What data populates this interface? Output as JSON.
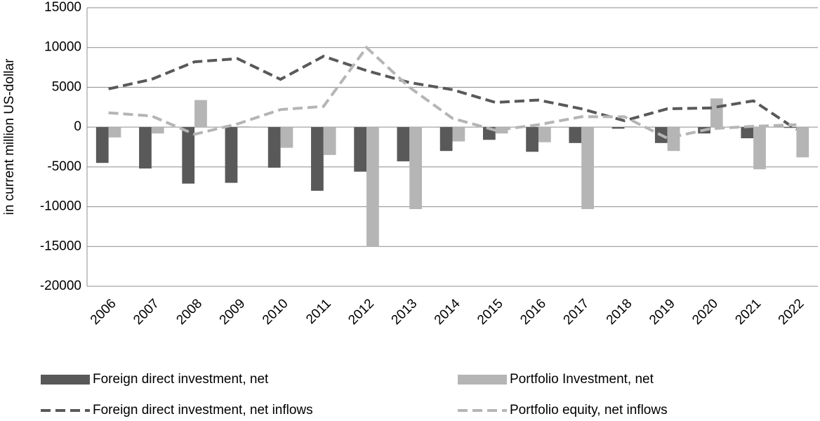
{
  "chart_data": {
    "type": "bar_line",
    "y_label": "in current million US-dollar",
    "categories": [
      "2006",
      "2007",
      "2008",
      "2009",
      "2010",
      "2011",
      "2012",
      "2013",
      "2014",
      "2015",
      "2016",
      "2017",
      "2018",
      "2019",
      "2020",
      "2021",
      "2022"
    ],
    "ylim": [
      -20000,
      15000
    ],
    "yticks": [
      -20000,
      -15000,
      -10000,
      -5000,
      0,
      5000,
      10000,
      15000
    ],
    "grid": true,
    "legend": "bottom",
    "series": [
      {
        "name": "Foreign direct investment, net",
        "kind": "bar",
        "color": "#595959",
        "values": [
          -4500,
          -5200,
          -7100,
          -7000,
          -5100,
          -8000,
          -5600,
          -4300,
          -3000,
          -1600,
          -3100,
          -2000,
          -200,
          -2000,
          -800,
          -1400,
          -100
        ]
      },
      {
        "name": "Portfolio Investment, net",
        "kind": "bar",
        "color": "#b5b5b5",
        "values": [
          -1300,
          -800,
          3400,
          100,
          -2600,
          -3500,
          -15000,
          -10300,
          -1800,
          -800,
          -1900,
          -10300,
          100,
          -3000,
          3600,
          -5300,
          -3800
        ]
      },
      {
        "name": "Foreign direct investment, net inflows",
        "kind": "line",
        "color": "#595959",
        "values": [
          4800,
          6000,
          8200,
          8600,
          6000,
          8900,
          7100,
          5600,
          4700,
          3100,
          3400,
          2300,
          800,
          2300,
          2400,
          3300,
          -300
        ]
      },
      {
        "name": "Portfolio equity, net inflows",
        "kind": "line",
        "color": "#b5b5b5",
        "values": [
          1800,
          1400,
          -900,
          400,
          2200,
          2600,
          10000,
          5000,
          1100,
          -400,
          300,
          1300,
          1300,
          -1400,
          -200,
          100,
          300
        ]
      }
    ]
  }
}
